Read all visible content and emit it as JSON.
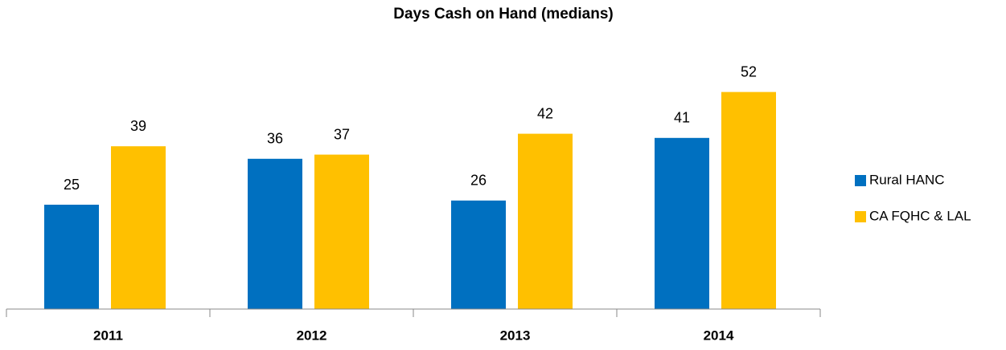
{
  "chart_data": {
    "type": "bar",
    "title": "Days Cash on Hand (medians)",
    "categories": [
      "2011",
      "2012",
      "2013",
      "2014"
    ],
    "series": [
      {
        "name": "Rural HANC",
        "color": "#0070c0",
        "values": [
          25,
          36,
          26,
          41
        ]
      },
      {
        "name": "CA FQHC & LAL",
        "color": "#ffc000",
        "values": [
          39,
          37,
          42,
          52
        ]
      }
    ],
    "ylim": [
      0,
      60
    ],
    "legend": "right"
  }
}
